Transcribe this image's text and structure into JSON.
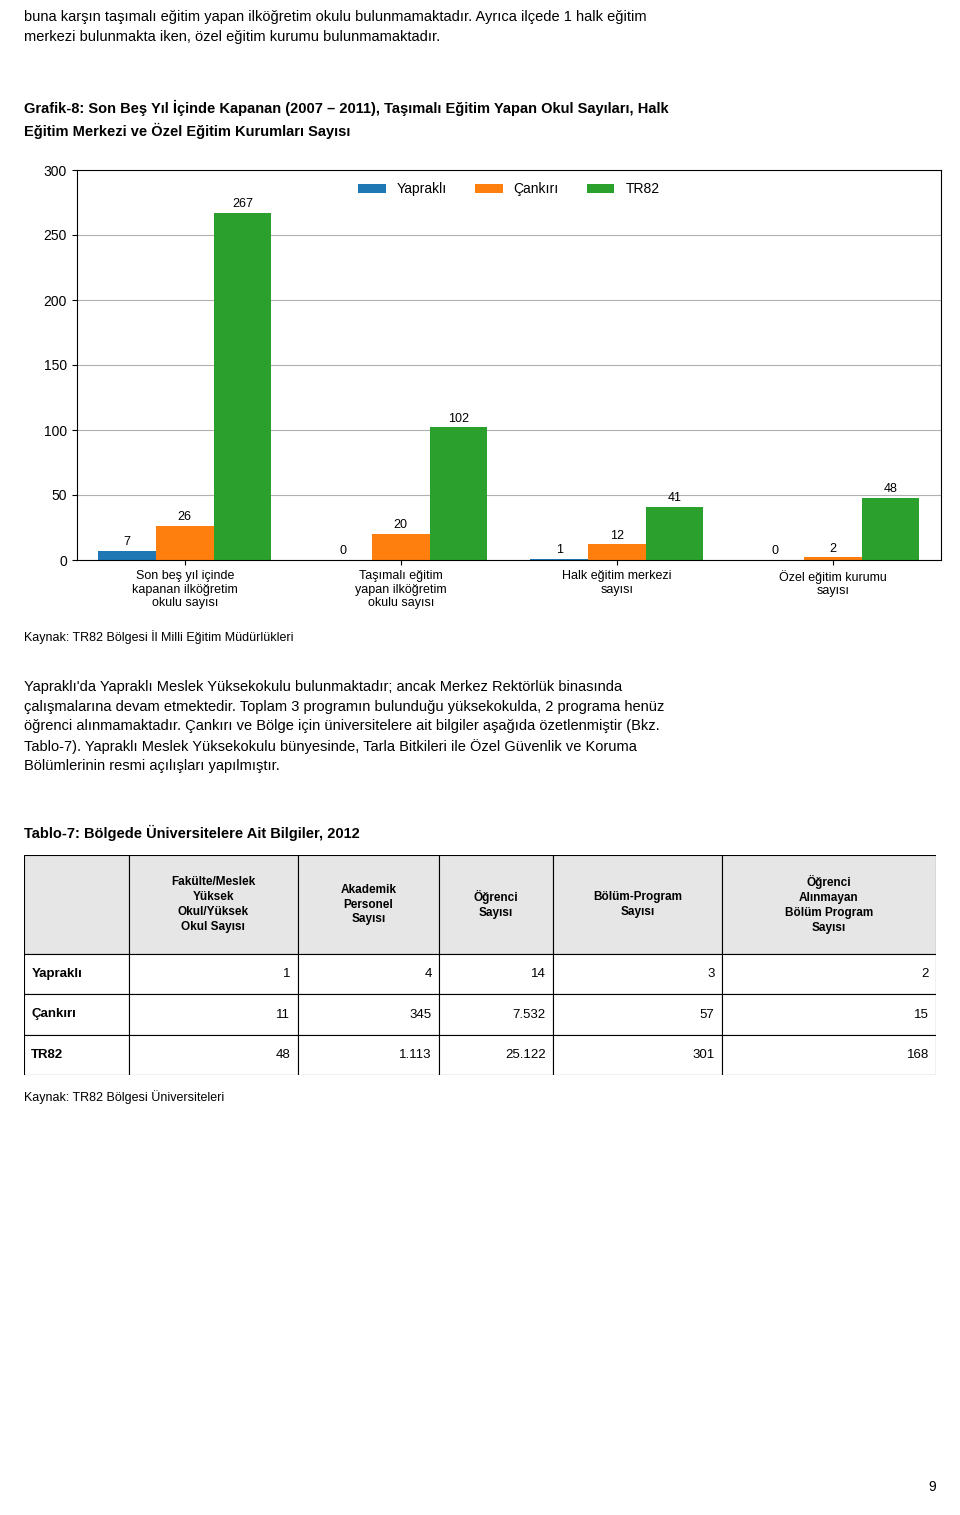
{
  "chart_data": [
    {
      "type": "bar",
      "title": "Grafik-8: Son Beş Yıl İçinde Kapanan (2007 – 2011), Taşımalı Eğitim Yapan Okul Sayıları, Halk\nEğitim Merkezi ve Özel Eğitim Kurumları Sayısı",
      "categories": [
        "Son beş yıl içinde\nkapanan ilköğretim\nokulu sayısı",
        "Taşımalı eğitim\nyapan ilköğretim\nokulu sayısı",
        "Halk eğitim merkezi\nsayısı",
        "Özel eğitim kurumu\nsayısı"
      ],
      "series": [
        {
          "name": "Yapraklı",
          "values": [
            7,
            0,
            1,
            0
          ]
        },
        {
          "name": "Çankırı",
          "values": [
            26,
            20,
            12,
            2
          ]
        },
        {
          "name": "TR82",
          "values": [
            267,
            102,
            41,
            48
          ]
        }
      ],
      "ylim": [
        0,
        300
      ],
      "yticks": [
        0,
        50,
        100,
        150,
        200,
        250,
        300
      ],
      "grid": true,
      "legend": "upper center",
      "data_labels": true,
      "annotations": [
        "buna karşın taşımalı eğitim yapan ilköğretim okulu bulunmamaktadır. Ayrıca ilçede 1 halk eğitim\nmerkezi bulunmakta iken, özel eğitim kurumu bulunmamaktadır.",
        "Kaynak: TR82 Bölgesi İl Milli Eğitim Müdürlükleri",
        "Yapraklı'da Yapraklı Meslek Yüksekokulu bulunmaktadır; ancak Merkez Rektörlük binasında\nçalışmalarına devam etmektedir. Toplam 3 programın bulunduğu yüksekokulda, 2 programa henüz\nöğrenci alınmamaktadır. Çankırı ve Bölge için üniversitelere ait bilgiler aşağıda özetlenmiştir (Bkz.\nTablo-7). Yapraklı Meslek Yüksekokulu bünyesinde, Tarla Bitkileri ile Özel Güvenlik ve Koruma\nBölümlerinin resmi açılışları yapılmıştır.",
        "9"
      ]
    },
    {
      "type": "table",
      "title": "Tablo-7: Bölgede Üniversitelere Ait Bilgiler, 2012",
      "columns": [
        "Fakülte/Meslek\nYüksek\nOkul/Yüksek\nOkul Sayısı",
        "Akademik\nPersonel\nSayısı",
        "Öğrenci\nSayısı",
        "Bölüm-Program\nSayısı",
        "Öğrenci\nAlınmayan\nBölüm Program\nSayısı"
      ],
      "row_labels": [
        "Yapraklı",
        "Çankırı",
        "TR82"
      ],
      "rows": [
        [
          "1",
          "4",
          "14",
          "3",
          "2"
        ],
        [
          "11",
          "345",
          "7.532",
          "57",
          "15"
        ],
        [
          "48",
          "1.113",
          "25.122",
          "301",
          "168"
        ]
      ],
      "annotations": [
        "Kaynak: TR82 Bölgesi Üniversiteleri"
      ]
    }
  ]
}
